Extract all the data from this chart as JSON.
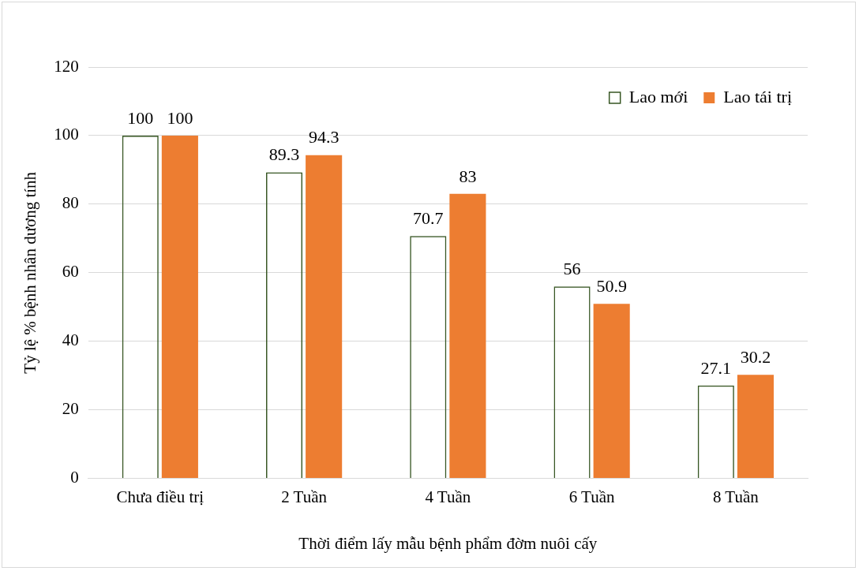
{
  "chart_data": {
    "type": "bar",
    "xlabel": "Thời điểm lấy mẫu bệnh phẩm đờm nuôi cấy",
    "ylabel": "Tỷ lệ % bệnh nhân dương tính",
    "categories": [
      "Chưa điều trị",
      "2 Tuần",
      "4 Tuần",
      "6 Tuần",
      "8 Tuần"
    ],
    "series": [
      {
        "name": "Lao mới",
        "color": "#375623",
        "values": [
          100,
          89.3,
          70.7,
          56,
          27.1
        ]
      },
      {
        "name": "Lao tái trị",
        "color": "#ed7d31",
        "values": [
          100,
          94.3,
          83,
          50.9,
          30.2
        ]
      }
    ],
    "ylim": [
      0,
      120
    ],
    "yticks": [
      0,
      20,
      40,
      60,
      80,
      100,
      120
    ],
    "grid": "y",
    "legend": "top right",
    "data_labels": true
  }
}
